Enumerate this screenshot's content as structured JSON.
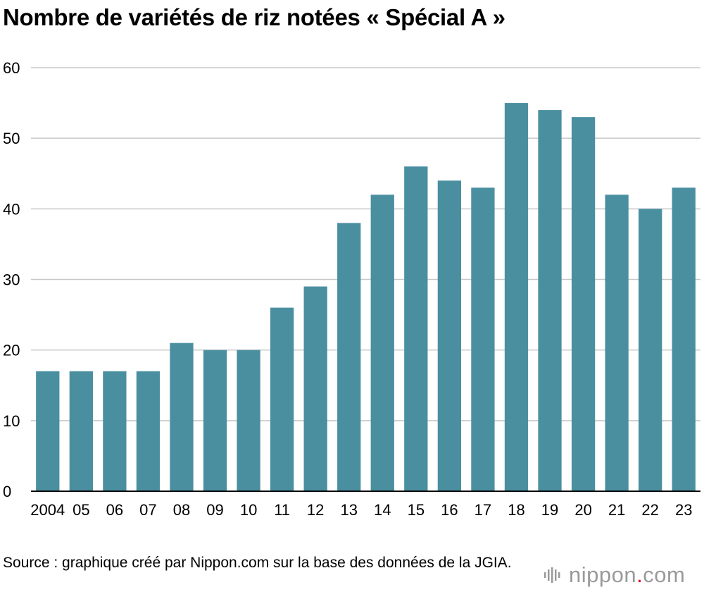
{
  "title": "Nombre de variétés de riz notées « Spécial A »",
  "source": "Source : graphique créé par Nippon.com sur la base des données de la JGIA.",
  "logo": {
    "name": "nippon",
    "dot": ".",
    "tld": "com",
    "accent": "#e60012",
    "color": "#9a9a9a"
  },
  "colors": {
    "bar": "#4a8fa0",
    "grid": "#c8c8c8",
    "axis": "#000000"
  },
  "chart_data": {
    "type": "bar",
    "title": "Nombre de variétés de riz notées « Spécial A »",
    "xlabel": "",
    "ylabel": "",
    "categories": [
      "2004",
      "05",
      "06",
      "07",
      "08",
      "09",
      "10",
      "11",
      "12",
      "13",
      "14",
      "15",
      "16",
      "17",
      "18",
      "19",
      "20",
      "21",
      "22",
      "23"
    ],
    "values": [
      17,
      17,
      17,
      17,
      21,
      20,
      20,
      26,
      29,
      38,
      42,
      46,
      44,
      43,
      55,
      54,
      53,
      42,
      40,
      43
    ],
    "ylim": [
      0,
      60
    ],
    "yticks": [
      0,
      10,
      20,
      30,
      40,
      50,
      60
    ],
    "grid": true,
    "legend": "none"
  }
}
